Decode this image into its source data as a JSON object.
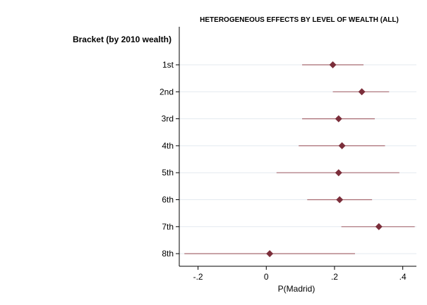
{
  "chart_data": {
    "type": "scatter",
    "subtype": "coefficient-plot",
    "title": "HETEROGENEOUS EFFECTS BY LEVEL OF WEALTH (ALL)",
    "group_label": "Bracket (by 2010 wealth)",
    "xlabel": "P(Madrid)",
    "xlim": [
      -0.255,
      0.44
    ],
    "xticks": [
      {
        "value": -0.2,
        "label": "-.2"
      },
      {
        "value": 0,
        "label": "0"
      },
      {
        "value": 0.2,
        "label": ".2"
      },
      {
        "value": 0.4,
        "label": ".4"
      }
    ],
    "grid": true,
    "categories": [
      "1st",
      "2nd",
      "3rd",
      "4th",
      "5th",
      "6th",
      "7th",
      "8th"
    ],
    "estimates": [
      0.195,
      0.28,
      0.212,
      0.222,
      0.212,
      0.215,
      0.33,
      0.01
    ],
    "ci_low": [
      0.105,
      0.195,
      0.105,
      0.095,
      0.03,
      0.12,
      0.22,
      -0.24
    ],
    "ci_high": [
      0.285,
      0.36,
      0.318,
      0.348,
      0.39,
      0.31,
      0.435,
      0.26
    ],
    "colors": {
      "marker": "#7b2e3a",
      "ci_line": "#a86b72",
      "grid": "#e3e9ef",
      "axis": "#000000"
    }
  }
}
